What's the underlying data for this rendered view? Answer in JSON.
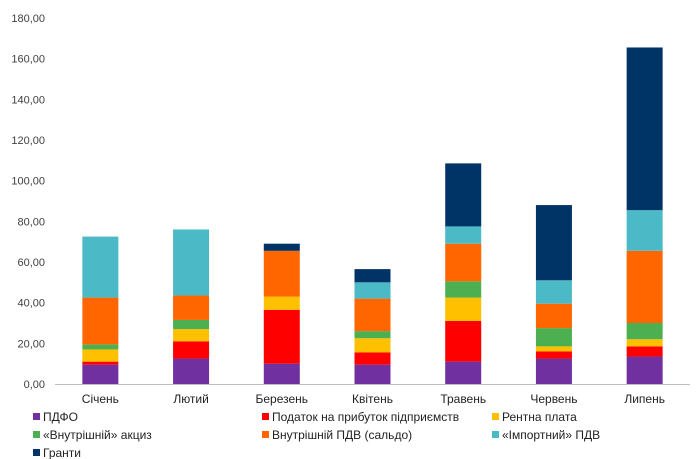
{
  "chart_data": {
    "type": "bar",
    "stacked": true,
    "categories": [
      "Січень",
      "Лютий",
      "Березень",
      "Квітень",
      "Травень",
      "Червень",
      "Липень"
    ],
    "ylim": [
      0,
      180
    ],
    "y_ticks": [
      "0,00",
      "20,00",
      "40,00",
      "60,00",
      "80,00",
      "100,00",
      "120,00",
      "140,00",
      "160,00",
      "180,00"
    ],
    "grid": false,
    "legend_position": "bottom",
    "series": [
      {
        "name": "ПДФО",
        "color": "#7030a0",
        "values": [
          9.5,
          12.5,
          10,
          9.5,
          11,
          12.5,
          13.5
        ]
      },
      {
        "name": "Податок на прибуток підприємств",
        "color": "#ff0000",
        "values": [
          1.5,
          8.5,
          26.5,
          6,
          20,
          3.5,
          5
        ]
      },
      {
        "name": "Рентна плата",
        "color": "#ffc000",
        "values": [
          6,
          6,
          6.5,
          7,
          11.5,
          2.5,
          3.5
        ]
      },
      {
        "name": "«Внутрішній» акциз",
        "color": "#4caf50",
        "values": [
          2.5,
          4.5,
          0,
          3.5,
          8,
          9,
          8
        ]
      },
      {
        "name": "Внутрішній ПДВ (сальдо)",
        "color": "#ff6600",
        "values": [
          23,
          12,
          22.5,
          16,
          18.5,
          12,
          35.5
        ]
      },
      {
        "name": "«Імпортний» ПДВ",
        "color": "#4bbac6",
        "values": [
          30,
          32.5,
          0,
          8,
          8.5,
          11.5,
          20
        ]
      },
      {
        "name": "Гранти",
        "color": "#003366",
        "values": [
          0,
          0,
          3.5,
          6.5,
          31,
          37,
          80
        ]
      }
    ]
  }
}
